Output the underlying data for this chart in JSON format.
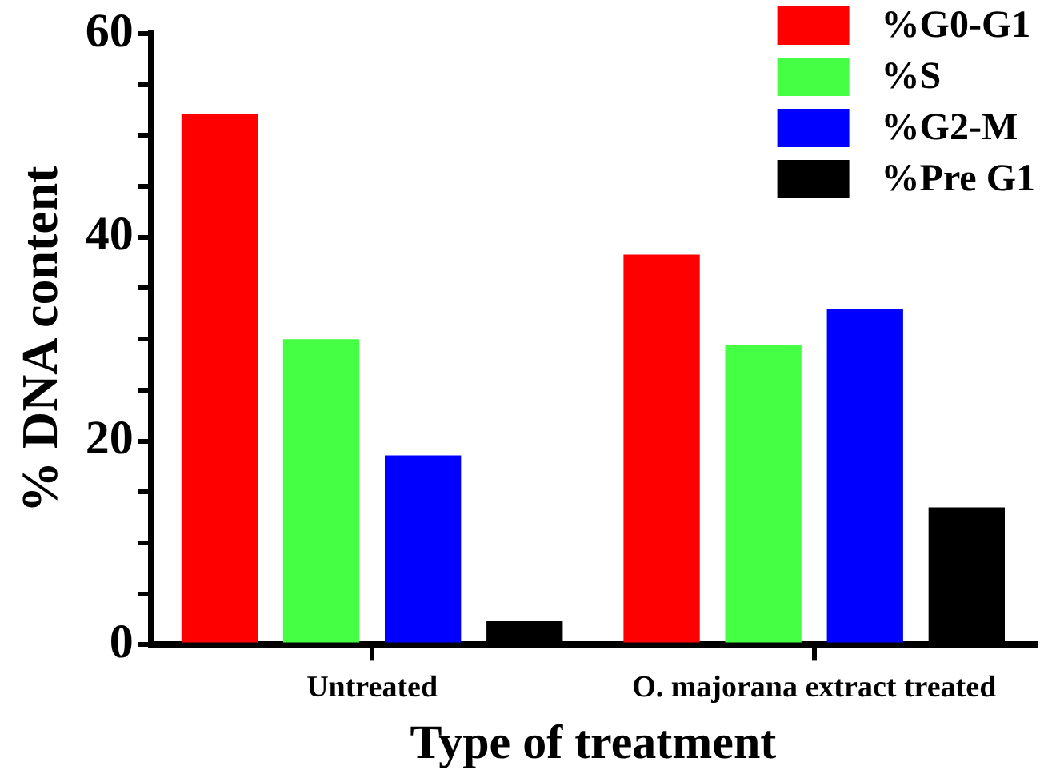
{
  "chart_data": {
    "type": "bar",
    "xlabel": "Type of treatment",
    "ylabel": "% DNA content",
    "categories": [
      "Untreated",
      "O. majorana extract treated"
    ],
    "series": [
      {
        "name": "%G0-G1",
        "color": "#ff0000",
        "values": [
          52.1,
          38.3
        ]
      },
      {
        "name": "%S",
        "color": "#44ff44",
        "values": [
          30.0,
          29.4
        ]
      },
      {
        "name": "%G2-M",
        "color": "#0000ff",
        "values": [
          18.6,
          33.0
        ]
      },
      {
        "name": "%Pre G1",
        "color": "#000000",
        "values": [
          2.3,
          13.5
        ]
      }
    ],
    "ylim": [
      0,
      60
    ],
    "yticks": [
      0,
      {
        "value": 5,
        "label": null
      },
      {
        "value": 10,
        "label": null
      },
      {
        "value": 15,
        "label": null
      },
      20,
      {
        "value": 25,
        "label": null
      },
      {
        "value": 30,
        "label": null
      },
      {
        "value": 35,
        "label": null
      },
      40,
      {
        "value": 45,
        "label": null
      },
      {
        "value": 50,
        "label": null
      },
      {
        "value": 55,
        "label": null
      },
      60
    ],
    "grid": false,
    "legend": "top right"
  }
}
